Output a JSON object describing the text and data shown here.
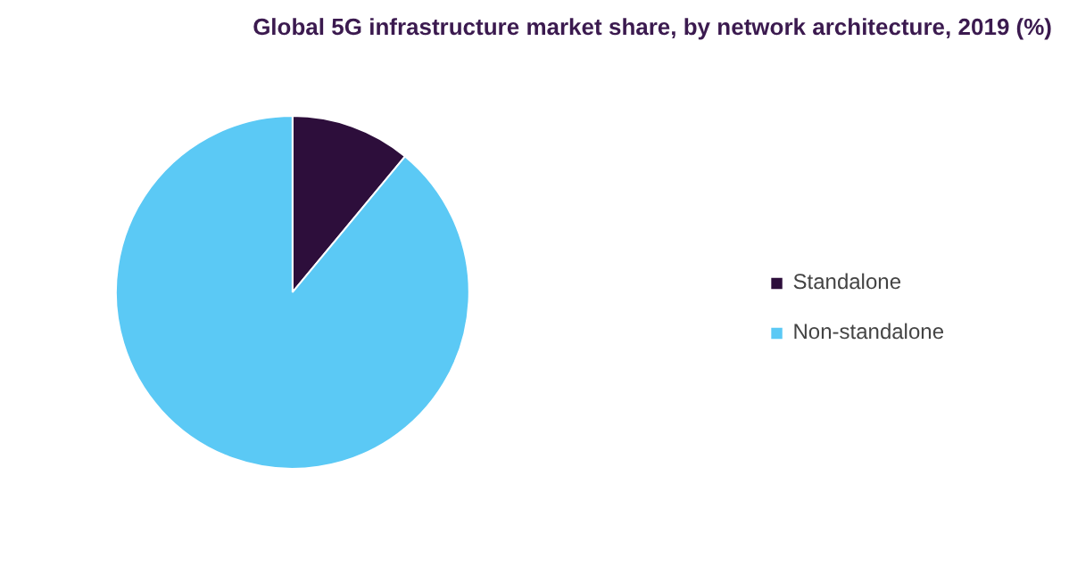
{
  "chart_data": {
    "type": "pie",
    "title": "Global 5G infrastructure market share, by network architecture, 2019 (%)",
    "categories": [
      "Standalone",
      "Non-standalone"
    ],
    "values": [
      11,
      89
    ],
    "colors": [
      "#2d0e3b",
      "#5bc9f5"
    ],
    "legend": "right"
  }
}
